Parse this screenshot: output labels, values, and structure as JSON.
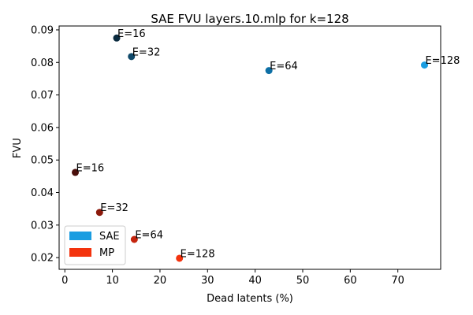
{
  "chart_data": {
    "type": "scatter",
    "title": "SAE FVU layers.10.mlp for k=128",
    "xlabel": "Dead latents (%)",
    "ylabel": "FVU",
    "xlim": [
      -1.2,
      79
    ],
    "ylim": [
      0.0164,
      0.0912
    ],
    "xticks": [
      0,
      10,
      20,
      30,
      40,
      50,
      60,
      70
    ],
    "yticks": [
      0.02,
      0.03,
      0.04,
      0.05,
      0.06,
      0.07,
      0.08,
      0.09
    ],
    "ytick_labels": [
      "0.02",
      "0.03",
      "0.04",
      "0.05",
      "0.06",
      "0.07",
      "0.08",
      "0.09"
    ],
    "grid": false,
    "legend": {
      "position": "lower-left",
      "entries": [
        {
          "name": "SAE",
          "color": "#1a9de1"
        },
        {
          "name": "MP",
          "color": "#f3330e"
        }
      ]
    },
    "series": [
      {
        "name": "SAE",
        "points": [
          {
            "x": 10.9,
            "y": 0.0875,
            "label": "E=16",
            "color": "#0b2b3f"
          },
          {
            "x": 14.0,
            "y": 0.0818,
            "label": "E=32",
            "color": "#10496a"
          },
          {
            "x": 42.9,
            "y": 0.0775,
            "label": "E=64",
            "color": "#0d6fa5"
          },
          {
            "x": 75.6,
            "y": 0.0792,
            "label": "E=128",
            "color": "#1a9de1"
          }
        ]
      },
      {
        "name": "MP",
        "points": [
          {
            "x": 2.2,
            "y": 0.0462,
            "label": "E=16",
            "color": "#4a0f0b"
          },
          {
            "x": 7.3,
            "y": 0.0339,
            "label": "E=32",
            "color": "#8c1a0c"
          },
          {
            "x": 14.6,
            "y": 0.0256,
            "label": "E=64",
            "color": "#c5250e"
          },
          {
            "x": 24.1,
            "y": 0.0198,
            "label": "E=128",
            "color": "#f3330e"
          }
        ]
      }
    ]
  }
}
